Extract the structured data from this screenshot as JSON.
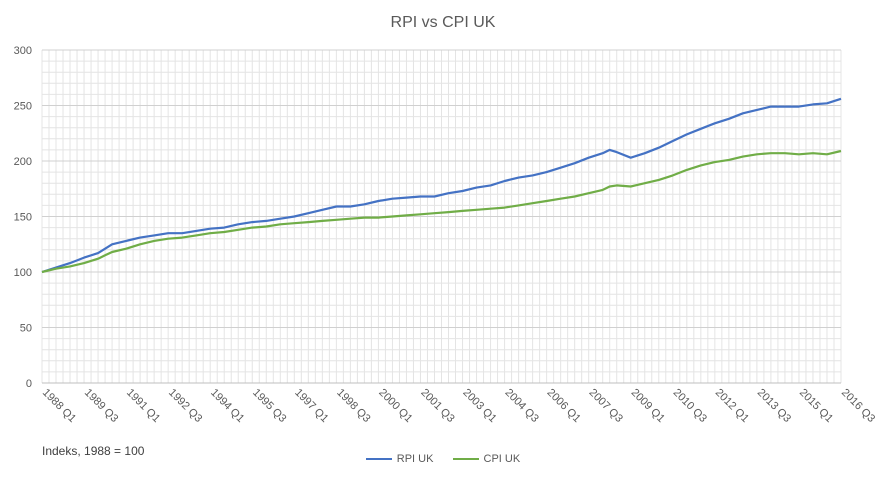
{
  "chart_data": {
    "type": "line",
    "title": "RPI vs CPI UK",
    "note": "Indeks, 1988 = 100",
    "ylim": [
      0,
      300
    ],
    "yticks": [
      0,
      50,
      100,
      150,
      200,
      250,
      300
    ],
    "grid": true,
    "legend_position": "bottom",
    "x_start": "1988 Q1",
    "x_end": "2016 Q3",
    "x_tick_labels": [
      "1988 Q1",
      "1989 Q3",
      "1991 Q1",
      "1992 Q3",
      "1994 Q1",
      "1995 Q3",
      "1997 Q1",
      "1998 Q3",
      "2000 Q1",
      "2001 Q3",
      "2003 Q1",
      "2004 Q3",
      "2006 Q1",
      "2007 Q3",
      "2009 Q1",
      "2010 Q3",
      "2012 Q1",
      "2013 Q3",
      "2015 Q1",
      "2016 Q3"
    ],
    "series": [
      {
        "name": "RPI UK",
        "color": "#4472C4",
        "points": [
          [
            "1988 Q1",
            100
          ],
          [
            "1988 Q3",
            104
          ],
          [
            "1989 Q1",
            108
          ],
          [
            "1989 Q3",
            113
          ],
          [
            "1990 Q1",
            117
          ],
          [
            "1990 Q2",
            121
          ],
          [
            "1990 Q3",
            125
          ],
          [
            "1991 Q1",
            128
          ],
          [
            "1991 Q3",
            131
          ],
          [
            "1992 Q1",
            133
          ],
          [
            "1992 Q3",
            135
          ],
          [
            "1993 Q1",
            135
          ],
          [
            "1993 Q3",
            137
          ],
          [
            "1994 Q1",
            139
          ],
          [
            "1994 Q3",
            140
          ],
          [
            "1995 Q1",
            143
          ],
          [
            "1995 Q3",
            145
          ],
          [
            "1996 Q1",
            146
          ],
          [
            "1996 Q3",
            148
          ],
          [
            "1997 Q1",
            150
          ],
          [
            "1997 Q3",
            153
          ],
          [
            "1998 Q1",
            156
          ],
          [
            "1998 Q3",
            159
          ],
          [
            "1999 Q1",
            159
          ],
          [
            "1999 Q3",
            161
          ],
          [
            "2000 Q1",
            164
          ],
          [
            "2000 Q3",
            166
          ],
          [
            "2001 Q1",
            167
          ],
          [
            "2001 Q3",
            168
          ],
          [
            "2002 Q1",
            168
          ],
          [
            "2002 Q3",
            171
          ],
          [
            "2003 Q1",
            173
          ],
          [
            "2003 Q3",
            176
          ],
          [
            "2004 Q1",
            178
          ],
          [
            "2004 Q3",
            182
          ],
          [
            "2005 Q1",
            185
          ],
          [
            "2005 Q3",
            187
          ],
          [
            "2006 Q1",
            190
          ],
          [
            "2006 Q3",
            194
          ],
          [
            "2007 Q1",
            198
          ],
          [
            "2007 Q3",
            203
          ],
          [
            "2008 Q1",
            207
          ],
          [
            "2008 Q2",
            210
          ],
          [
            "2008 Q3",
            208
          ],
          [
            "2009 Q1",
            203
          ],
          [
            "2009 Q3",
            207
          ],
          [
            "2010 Q1",
            212
          ],
          [
            "2010 Q3",
            218
          ],
          [
            "2011 Q1",
            224
          ],
          [
            "2011 Q3",
            229
          ],
          [
            "2012 Q1",
            234
          ],
          [
            "2012 Q3",
            238
          ],
          [
            "2013 Q1",
            243
          ],
          [
            "2013 Q3",
            246
          ],
          [
            "2014 Q1",
            249
          ],
          [
            "2014 Q3",
            249
          ],
          [
            "2015 Q1",
            249
          ],
          [
            "2015 Q3",
            251
          ],
          [
            "2016 Q1",
            252
          ],
          [
            "2016 Q3",
            256
          ]
        ]
      },
      {
        "name": "CPI UK",
        "color": "#70AD47",
        "points": [
          [
            "1988 Q1",
            100
          ],
          [
            "1988 Q3",
            103
          ],
          [
            "1989 Q1",
            105
          ],
          [
            "1989 Q3",
            108
          ],
          [
            "1990 Q1",
            112
          ],
          [
            "1990 Q2",
            115
          ],
          [
            "1990 Q3",
            118
          ],
          [
            "1991 Q1",
            121
          ],
          [
            "1991 Q3",
            125
          ],
          [
            "1992 Q1",
            128
          ],
          [
            "1992 Q3",
            130
          ],
          [
            "1993 Q1",
            131
          ],
          [
            "1993 Q3",
            133
          ],
          [
            "1994 Q1",
            135
          ],
          [
            "1994 Q3",
            136
          ],
          [
            "1995 Q1",
            138
          ],
          [
            "1995 Q3",
            140
          ],
          [
            "1996 Q1",
            141
          ],
          [
            "1996 Q3",
            143
          ],
          [
            "1997 Q1",
            144
          ],
          [
            "1997 Q3",
            145
          ],
          [
            "1998 Q1",
            146
          ],
          [
            "1998 Q3",
            147
          ],
          [
            "1999 Q1",
            148
          ],
          [
            "1999 Q3",
            149
          ],
          [
            "2000 Q1",
            149
          ],
          [
            "2000 Q3",
            150
          ],
          [
            "2001 Q1",
            151
          ],
          [
            "2001 Q3",
            152
          ],
          [
            "2002 Q1",
            153
          ],
          [
            "2002 Q3",
            154
          ],
          [
            "2003 Q1",
            155
          ],
          [
            "2003 Q3",
            156
          ],
          [
            "2004 Q1",
            157
          ],
          [
            "2004 Q3",
            158
          ],
          [
            "2005 Q1",
            160
          ],
          [
            "2005 Q3",
            162
          ],
          [
            "2006 Q1",
            164
          ],
          [
            "2006 Q3",
            166
          ],
          [
            "2007 Q1",
            168
          ],
          [
            "2007 Q3",
            171
          ],
          [
            "2008 Q1",
            174
          ],
          [
            "2008 Q2",
            177
          ],
          [
            "2008 Q3",
            178
          ],
          [
            "2009 Q1",
            177
          ],
          [
            "2009 Q3",
            180
          ],
          [
            "2010 Q1",
            183
          ],
          [
            "2010 Q3",
            187
          ],
          [
            "2011 Q1",
            192
          ],
          [
            "2011 Q3",
            196
          ],
          [
            "2012 Q1",
            199
          ],
          [
            "2012 Q3",
            201
          ],
          [
            "2013 Q1",
            204
          ],
          [
            "2013 Q3",
            206
          ],
          [
            "2014 Q1",
            207
          ],
          [
            "2014 Q3",
            207
          ],
          [
            "2015 Q1",
            206
          ],
          [
            "2015 Q3",
            207
          ],
          [
            "2016 Q1",
            206
          ],
          [
            "2016 Q3",
            209
          ]
        ]
      }
    ]
  }
}
